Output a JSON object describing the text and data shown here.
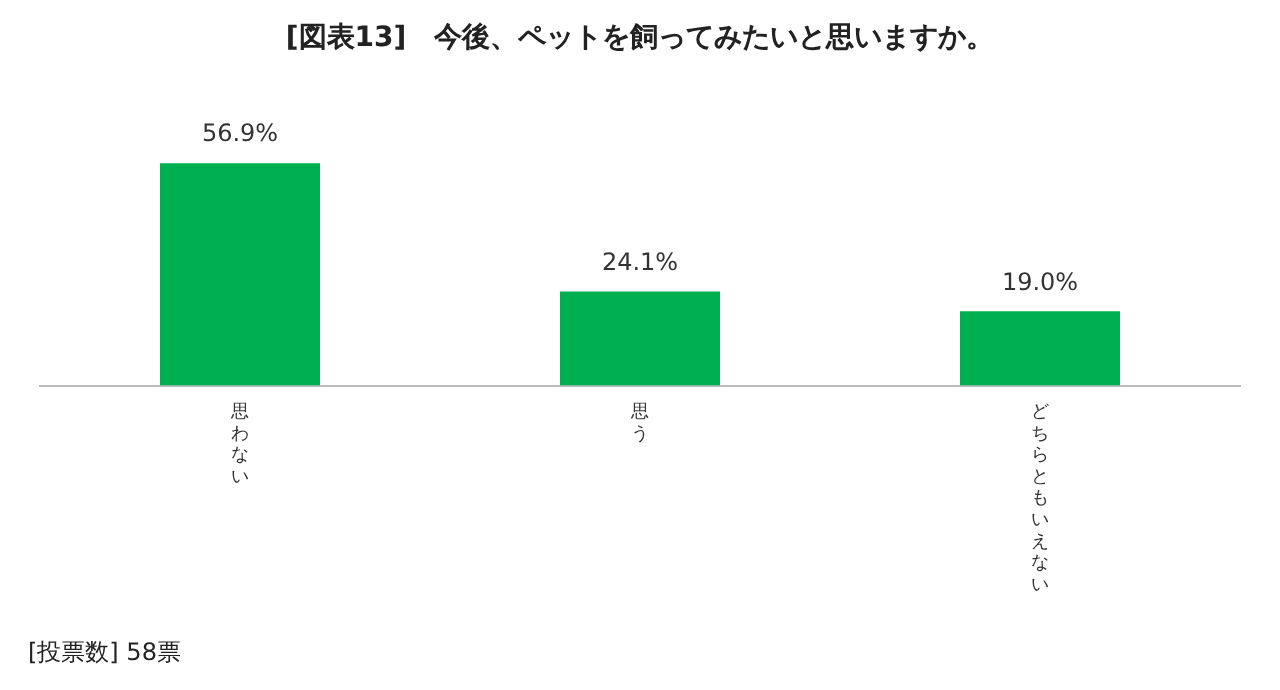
{
  "chart_data": {
    "type": "bar",
    "title": "[図表13]　今後、ペットを飼ってみたいと思いますか。",
    "categories": [
      "思わない",
      "思う",
      "どちらともいえない"
    ],
    "values": [
      56.9,
      24.1,
      19.0
    ],
    "color": "#00b050",
    "value_labels": [
      "56.9%",
      "24.1%",
      "19.0%"
    ],
    "tick_labels": "x",
    "grid": false,
    "legend": false,
    "annotations": [
      "[投票数] 58票"
    ]
  }
}
